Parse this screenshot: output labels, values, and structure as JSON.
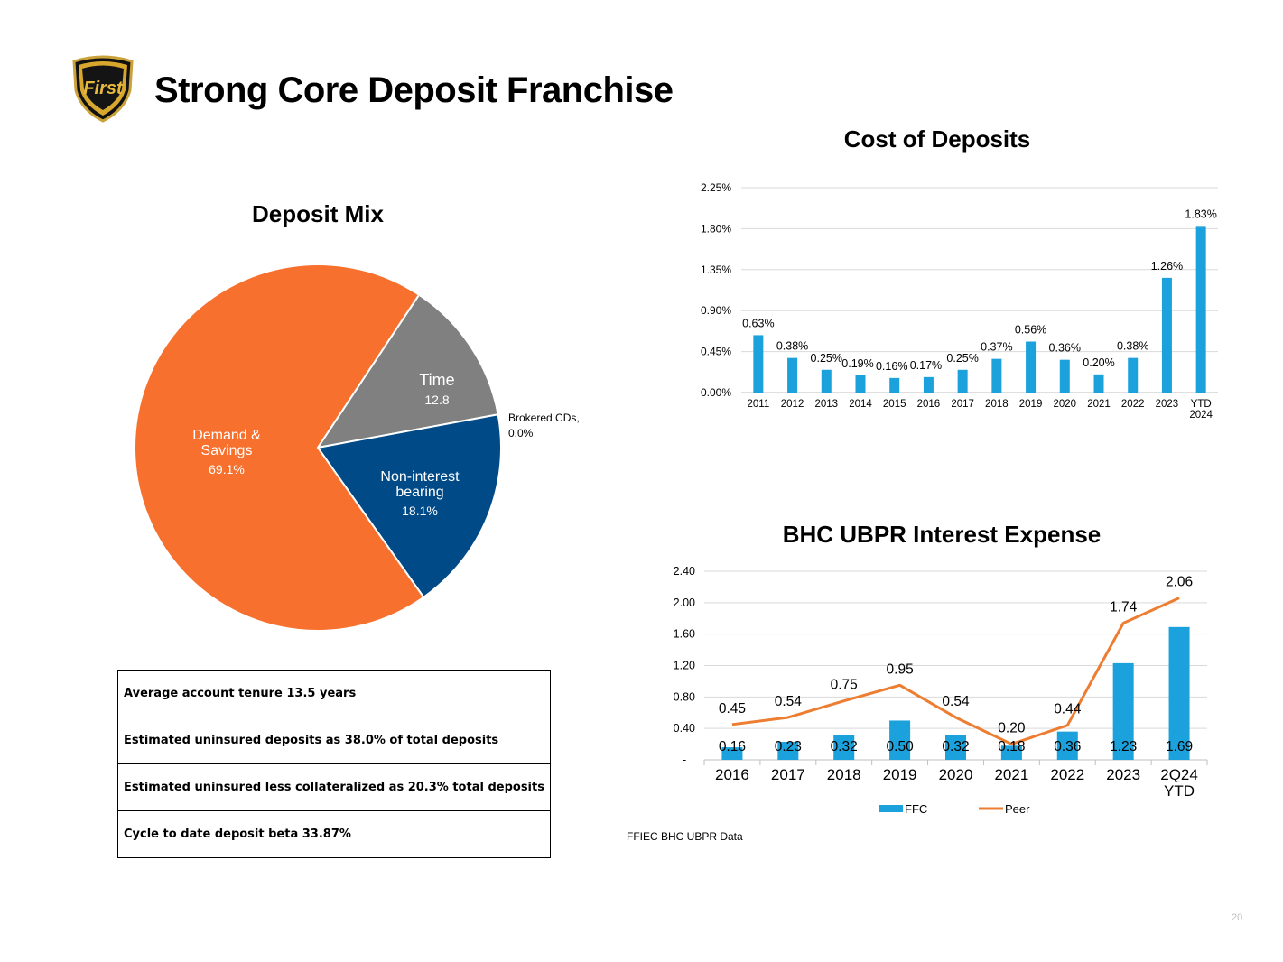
{
  "page": {
    "title": "Strong Core Deposit Franchise",
    "logo_text": "First",
    "source_note": "FFIEC BHC UBPR Data",
    "page_number": "20",
    "colors": {
      "orange": "#F7702D",
      "gray": "#808080",
      "navy": "#004A87",
      "blue": "#1BA1DC",
      "line": "#ED7D31"
    }
  },
  "facts": [
    "Average account tenure 13.5 years",
    "Estimated uninsured deposits as 38.0% of total deposits",
    "Estimated uninsured less collateralized as 20.3% total deposits",
    "Cycle to date deposit beta 33.87%"
  ],
  "chart_data": [
    {
      "type": "pie",
      "title": "Deposit Mix",
      "slices": [
        {
          "name_lines": [
            "Time"
          ],
          "value": 12.8,
          "label": "12.8",
          "color": "#808080"
        },
        {
          "name_lines": [
            "Brokered CDs,"
          ],
          "value": 0.0,
          "label": "0.0%",
          "color": "#A5A5A5"
        },
        {
          "name_lines": [
            "Non-interest",
            "bearing"
          ],
          "value": 18.1,
          "label": "18.1%",
          "color": "#004A87"
        },
        {
          "name_lines": [
            "Demand &",
            "Savings"
          ],
          "value": 69.1,
          "label": "69.1%",
          "color": "#F7702D"
        }
      ]
    },
    {
      "type": "bar",
      "title": "Cost of Deposits",
      "categories": [
        [
          "2011"
        ],
        [
          "2012"
        ],
        [
          "2013"
        ],
        [
          "2014"
        ],
        [
          "2015"
        ],
        [
          "2016"
        ],
        [
          "2017"
        ],
        [
          "2018"
        ],
        [
          "2019"
        ],
        [
          "2020"
        ],
        [
          "2021"
        ],
        [
          "2022"
        ],
        [
          "2023"
        ],
        [
          "YTD",
          "2024"
        ]
      ],
      "values": [
        0.63,
        0.38,
        0.25,
        0.19,
        0.16,
        0.17,
        0.25,
        0.37,
        0.56,
        0.36,
        0.2,
        0.38,
        1.26,
        1.83
      ],
      "value_labels": [
        "0.63%",
        "0.38%",
        "0.25%",
        "0.19%",
        "0.16%",
        "0.17%",
        "0.25%",
        "0.37%",
        "0.56%",
        "0.36%",
        "0.20%",
        "0.38%",
        "1.26%",
        "1.83%"
      ],
      "ylim": [
        0,
        2.25
      ],
      "yticks": [
        0,
        0.45,
        0.9,
        1.35,
        1.8,
        2.25
      ],
      "ytick_labels": [
        "0.00%",
        "0.45%",
        "0.90%",
        "1.35%",
        "1.80%",
        "2.25%"
      ],
      "grid": true
    },
    {
      "type": "bar+line",
      "title": "BHC UBPR Interest Expense",
      "categories": [
        [
          "2016"
        ],
        [
          "2017"
        ],
        [
          "2018"
        ],
        [
          "2019"
        ],
        [
          "2020"
        ],
        [
          "2021"
        ],
        [
          "2022"
        ],
        [
          "2023"
        ],
        [
          "2Q24",
          "YTD"
        ]
      ],
      "series": [
        {
          "name": "FFC",
          "type": "bar",
          "values": [
            0.16,
            0.23,
            0.32,
            0.5,
            0.32,
            0.18,
            0.36,
            1.23,
            1.69
          ],
          "labels": [
            "0.16",
            "0.23",
            "0.32",
            "0.50",
            "0.32",
            "0.18",
            "0.36",
            "1.23",
            "1.69"
          ]
        },
        {
          "name": "Peer",
          "type": "line",
          "values": [
            0.45,
            0.54,
            0.75,
            0.95,
            0.54,
            0.2,
            0.44,
            1.74,
            2.06
          ],
          "labels": [
            "0.45",
            "0.54",
            "0.75",
            "0.95",
            "0.54",
            "0.20",
            "0.44",
            "1.74",
            "2.06"
          ]
        }
      ],
      "ylim": [
        0,
        2.4
      ],
      "yticks": [
        0,
        0.4,
        0.8,
        1.2,
        1.6,
        2.0,
        2.4
      ],
      "ytick_labels": [
        "-",
        "0.40",
        "0.80",
        "1.20",
        "1.60",
        "2.00",
        "2.40"
      ],
      "legend": "bottom",
      "grid": true
    }
  ]
}
